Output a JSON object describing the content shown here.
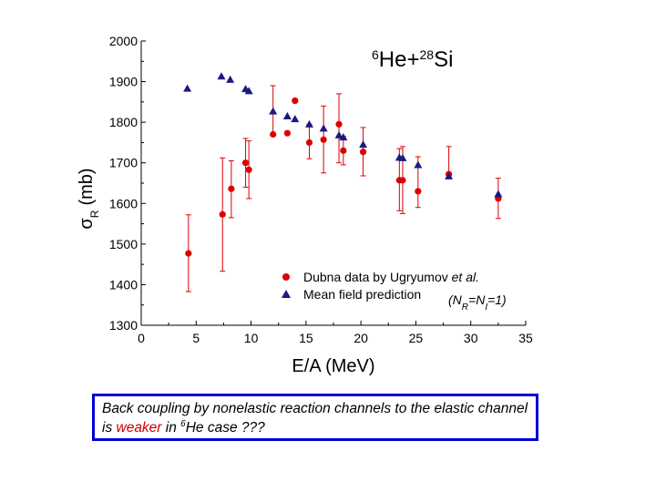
{
  "chart_data": {
    "type": "scatter",
    "title_nucleus_a": "6",
    "title_nucleus_a_symbol": "He",
    "title_plus": "+",
    "title_nucleus_b": "28",
    "title_nucleus_b_symbol": "Si",
    "xlabel": "E/A (MeV)",
    "ylabel_symbol": "σ",
    "ylabel_sub": "R",
    "ylabel_unit": "(mb)",
    "xlim": [
      0,
      35
    ],
    "ylim": [
      1300,
      2000
    ],
    "xticks": [
      0,
      5,
      10,
      15,
      20,
      25,
      30,
      35
    ],
    "yticks": [
      1300,
      1400,
      1500,
      1600,
      1700,
      1800,
      1900,
      2000
    ],
    "legend_placement": "bottom-right",
    "series": [
      {
        "name_prefix": "Dubna data by Ugryumov ",
        "name_italic": "et al.",
        "marker": "circle",
        "color": "#dd0000",
        "points": [
          {
            "x": 4.3,
            "y": 1477,
            "lo": 1383,
            "hi": 1572
          },
          {
            "x": 7.4,
            "y": 1573,
            "lo": 1433,
            "hi": 1712
          },
          {
            "x": 8.2,
            "y": 1636,
            "lo": 1565,
            "hi": 1705
          },
          {
            "x": 9.5,
            "y": 1700,
            "lo": 1640,
            "hi": 1760
          },
          {
            "x": 9.8,
            "y": 1683,
            "lo": 1612,
            "hi": 1754
          },
          {
            "x": 12.0,
            "y": 1770,
            "lo": null,
            "hi": 1890
          },
          {
            "x": 13.3,
            "y": 1773,
            "lo": null,
            "hi": null
          },
          {
            "x": 14.0,
            "y": 1853,
            "lo": null,
            "hi": null
          },
          {
            "x": 15.3,
            "y": 1750,
            "lo": 1710,
            "hi": 1795
          },
          {
            "x": 16.6,
            "y": 1757,
            "lo": 1675,
            "hi": 1840
          },
          {
            "x": 18.0,
            "y": 1795,
            "lo": 1700,
            "hi": 1870
          },
          {
            "x": 18.4,
            "y": 1730,
            "lo": 1695,
            "hi": 1765
          },
          {
            "x": 20.2,
            "y": 1727,
            "lo": 1668,
            "hi": 1787
          },
          {
            "x": 23.5,
            "y": 1657,
            "lo": 1582,
            "hi": 1735
          },
          {
            "x": 23.8,
            "y": 1657,
            "lo": 1575,
            "hi": 1740
          },
          {
            "x": 25.2,
            "y": 1630,
            "lo": 1590,
            "hi": 1715
          },
          {
            "x": 28.0,
            "y": 1672,
            "lo": null,
            "hi": 1740
          },
          {
            "x": 32.5,
            "y": 1612,
            "lo": 1563,
            "hi": 1662
          }
        ]
      },
      {
        "name": "Mean field prediction",
        "marker": "triangle",
        "color": "#1a1a80",
        "points": [
          {
            "x": 4.2,
            "y": 1883
          },
          {
            "x": 7.3,
            "y": 1913
          },
          {
            "x": 8.1,
            "y": 1905
          },
          {
            "x": 9.5,
            "y": 1882
          },
          {
            "x": 9.8,
            "y": 1877
          },
          {
            "x": 12.0,
            "y": 1827
          },
          {
            "x": 13.3,
            "y": 1815
          },
          {
            "x": 14.0,
            "y": 1808
          },
          {
            "x": 15.3,
            "y": 1795
          },
          {
            "x": 16.6,
            "y": 1785
          },
          {
            "x": 18.0,
            "y": 1768
          },
          {
            "x": 18.4,
            "y": 1763
          },
          {
            "x": 20.2,
            "y": 1745
          },
          {
            "x": 23.5,
            "y": 1713
          },
          {
            "x": 23.8,
            "y": 1712
          },
          {
            "x": 25.2,
            "y": 1695
          },
          {
            "x": 28.0,
            "y": 1667
          },
          {
            "x": 32.5,
            "y": 1623
          }
        ]
      }
    ],
    "annotation": {
      "open": "(N",
      "sub1": "R",
      "mid": "=N",
      "sub2": "I",
      "close": "=1)"
    }
  },
  "caption": {
    "part1": "Back coupling by nonelastic reaction channels to the elastic channel is ",
    "highlight": "weaker",
    "part2": " in ",
    "sup": "6",
    "part3": "He case ???"
  }
}
